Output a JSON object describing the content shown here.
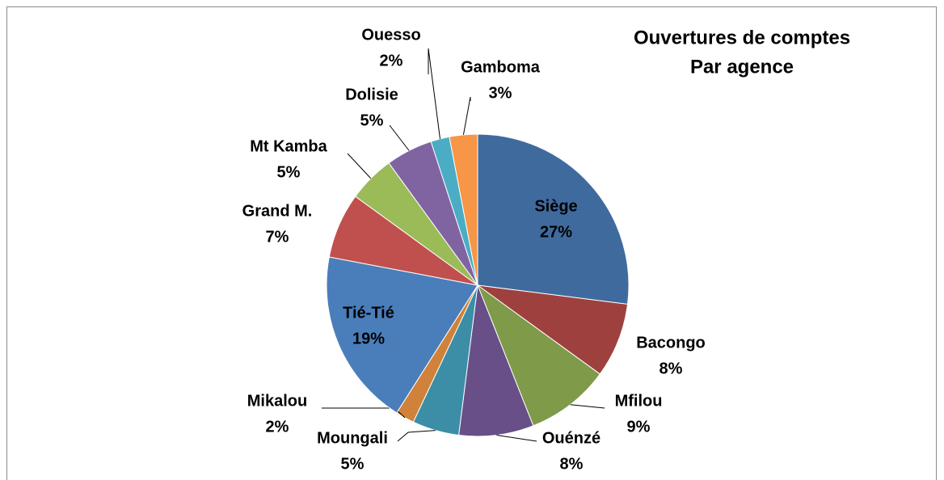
{
  "chart_data": {
    "type": "pie",
    "title": [
      "Ouvertures de comptes",
      "Par agence"
    ],
    "categories": [
      "Siège",
      "Bacongo",
      "Mfilou",
      "Ouénzé",
      "Moungali",
      "Mikalou",
      "Tié-Tié",
      "Grand M.",
      "Mt Kamba",
      "Dolisie",
      "Ouesso",
      "Gamboma"
    ],
    "values": [
      27,
      8,
      9,
      8,
      5,
      2,
      19,
      7,
      5,
      5,
      2,
      3
    ],
    "value_labels": [
      "27%",
      "8%",
      "9%",
      "8%",
      "5%",
      "2%",
      "19%",
      "7%",
      "5%",
      "5%",
      "2%",
      "3%"
    ],
    "colors": [
      "#3f6a9e",
      "#9e413e",
      "#7f9a48",
      "#684f88",
      "#3b8ea6",
      "#d0813a",
      "#4a7ebb",
      "#c0504d",
      "#9bbb59",
      "#8064a2",
      "#4bacc6",
      "#f79646"
    ]
  }
}
